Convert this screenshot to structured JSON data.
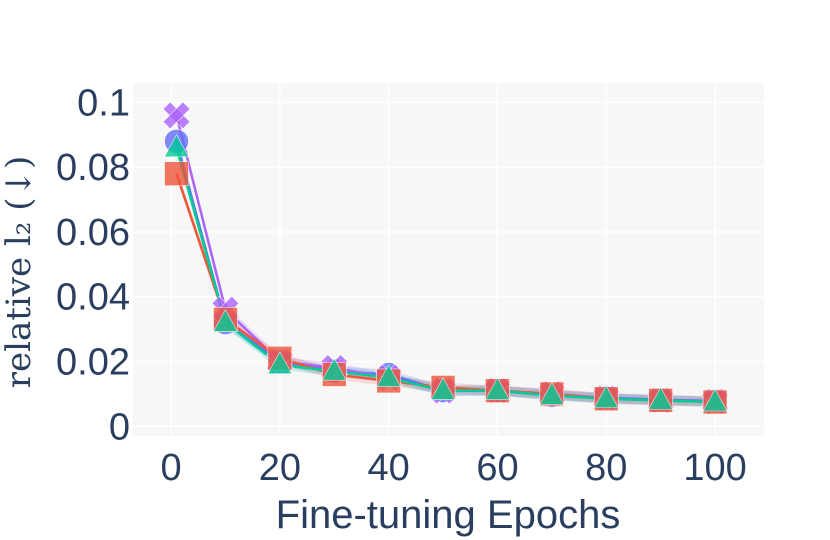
{
  "chart_data": {
    "type": "line",
    "xlabel": "Fine-tuning Epochs",
    "ylabel": "relative l₂ (↓)",
    "xlim": [
      -7,
      109
    ],
    "ylim": [
      -0.003,
      0.106
    ],
    "xticks": [
      0,
      20,
      40,
      60,
      80,
      100
    ],
    "xtick_labels": [
      "0",
      "20",
      "40",
      "60",
      "80",
      "100"
    ],
    "yticks": [
      0,
      0.02,
      0.04,
      0.06,
      0.08,
      0.1
    ],
    "ytick_labels": [
      "0",
      "0.02",
      "0.04",
      "0.06",
      "0.08",
      "0.1"
    ],
    "grid": true,
    "legend": "none",
    "x": [
      1,
      10,
      20,
      30,
      40,
      50,
      60,
      70,
      80,
      90,
      100
    ],
    "series": [
      {
        "marker": "circle",
        "color": "#636efa",
        "values": [
          0.088,
          0.032,
          0.02,
          0.017,
          0.016,
          0.011,
          0.011,
          0.0095,
          0.0088,
          0.0082,
          0.0078
        ]
      },
      {
        "marker": "x",
        "color": "#ab63fa",
        "values": [
          0.096,
          0.036,
          0.02,
          0.018,
          0.015,
          0.011,
          0.011,
          0.01,
          0.0087,
          0.008,
          0.0076
        ]
      },
      {
        "marker": "square",
        "color": "#ef553b",
        "values": [
          0.078,
          0.033,
          0.021,
          0.016,
          0.014,
          0.012,
          0.011,
          0.01,
          0.0085,
          0.008,
          0.0075
        ]
      },
      {
        "marker": "triangle",
        "color": "#00cc96",
        "values": [
          0.086,
          0.032,
          0.019,
          0.017,
          0.015,
          0.011,
          0.011,
          0.0095,
          0.0085,
          0.008,
          0.0075
        ]
      }
    ]
  }
}
